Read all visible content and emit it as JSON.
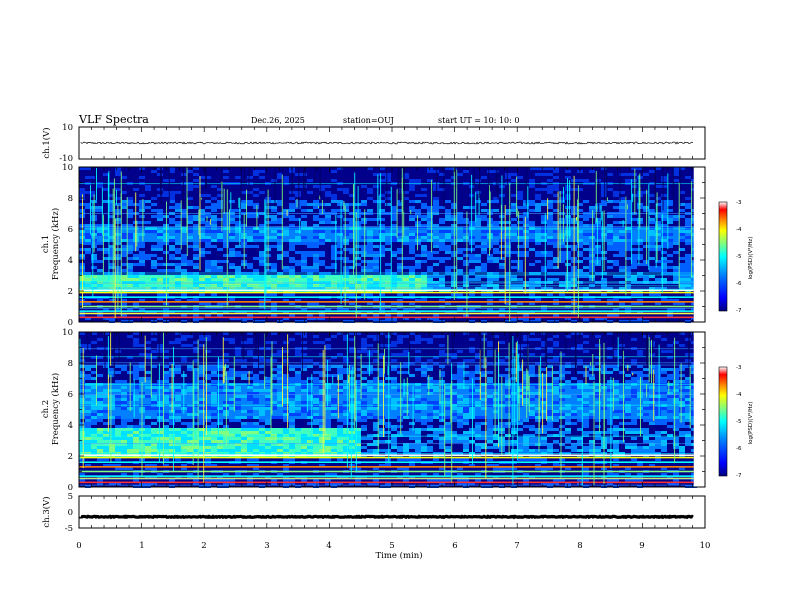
{
  "header": {
    "title": "VLF Spectra",
    "date": "Dec.26, 2025",
    "station": "station=OUJ",
    "start_ut": "start UT =   10: 10: 0"
  },
  "chart_data": {
    "type": "spectrogram",
    "xlabel": "Time (min)",
    "xlim": [
      0,
      10
    ],
    "x_ticks": [
      "0",
      "1",
      "2",
      "3",
      "4",
      "5",
      "6",
      "7",
      "8",
      "9",
      "10"
    ],
    "data_end_min": 9.82,
    "panels": [
      {
        "id": "ch1-waveform",
        "ylabel": "ch.1(V)",
        "ylim": [
          -10,
          10
        ],
        "y_ticks": [
          "10",
          "-10"
        ],
        "trace_level": 0,
        "trace_amplitude": 0.6
      },
      {
        "id": "ch1-spectrogram",
        "ylabel_line1": "ch.1",
        "ylabel_line2": "Frequency (kHz)",
        "ylim": [
          0,
          10
        ],
        "y_ticks": [
          "0",
          "2",
          "4",
          "6",
          "8",
          "10"
        ],
        "colorbar": {
          "label": "log(PSD)(V²/Hz)",
          "range": [
            -7,
            -3
          ],
          "ticks": [
            "-3",
            "-4",
            "-5",
            "-6",
            "-7"
          ]
        },
        "features": {
          "band_kHz": [
            2.0,
            3.2
          ],
          "band_end_min": 5.5,
          "upper_band_kHz": [
            5.3,
            6.3
          ],
          "strong_lines_kHz": [
            0.3,
            0.55,
            0.7,
            1.0,
            1.3,
            1.6,
            1.9,
            2.05
          ]
        }
      },
      {
        "id": "ch2-spectrogram",
        "ylabel_line1": "ch.2",
        "ylabel_line2": "Frequency (kHz)",
        "ylim": [
          0,
          10
        ],
        "y_ticks": [
          "0",
          "2",
          "4",
          "6",
          "8",
          "10"
        ],
        "colorbar": {
          "label": "log(PSD)(V²/Hz)",
          "range": [
            -7,
            -3
          ],
          "ticks": [
            "-3",
            "-4",
            "-5",
            "-6",
            "-7"
          ]
        },
        "features": {
          "band_kHz": [
            2.0,
            4.0
          ],
          "band_end_min": 4.5,
          "upper_band_kHz": [
            4.5,
            6.8
          ],
          "strong_lines_kHz": [
            0.3,
            0.55,
            0.7,
            1.0,
            1.3,
            1.6,
            1.9,
            2.05
          ]
        }
      },
      {
        "id": "ch3-waveform",
        "ylabel": "ch.3(V)",
        "ylim": [
          -5,
          5
        ],
        "y_ticks": [
          "5",
          "0",
          "-5"
        ],
        "trace_level": -1.5,
        "trace_amplitude": 0.15
      }
    ]
  },
  "colors": {
    "background": "#ffffff",
    "axis": "#000000",
    "colormap": [
      "#00007f",
      "#0000ff",
      "#007fff",
      "#00ffff",
      "#7fff7f",
      "#ffff00",
      "#ff7f00",
      "#ff0000",
      "#ffffff"
    ]
  }
}
